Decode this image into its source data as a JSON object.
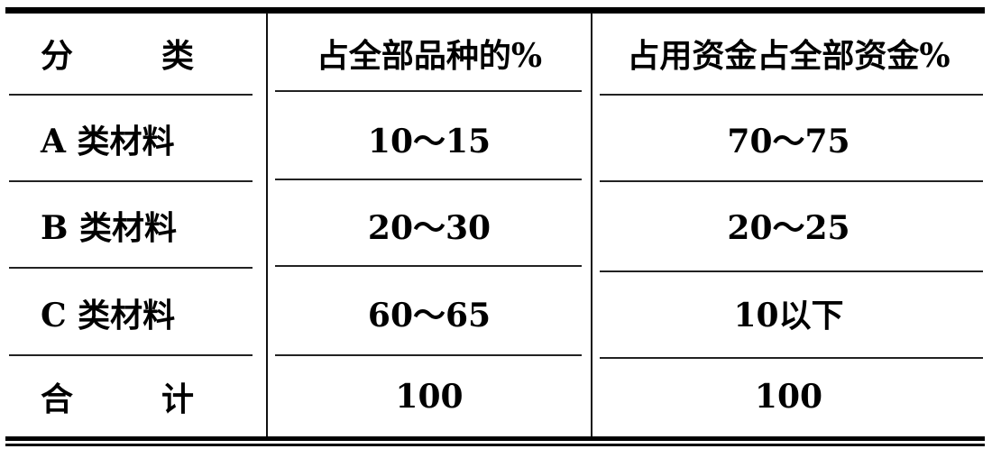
{
  "table": {
    "headers": [
      "分　类",
      "占全部品种的%",
      "占用资金占全部资金%"
    ],
    "header_split": [
      "分",
      "类"
    ],
    "rows": [
      {
        "category": "A 类材料",
        "items_pct": "10～15",
        "funds_pct": "70～75"
      },
      {
        "category": "B 类材料",
        "items_pct": "20～30",
        "funds_pct": "20～25"
      },
      {
        "category": "C 类材料",
        "items_pct": "60～65",
        "funds_pct": "10以下"
      }
    ],
    "total": {
      "label_split": [
        "合",
        "计"
      ],
      "items_pct": "100",
      "funds_pct": "100"
    }
  }
}
